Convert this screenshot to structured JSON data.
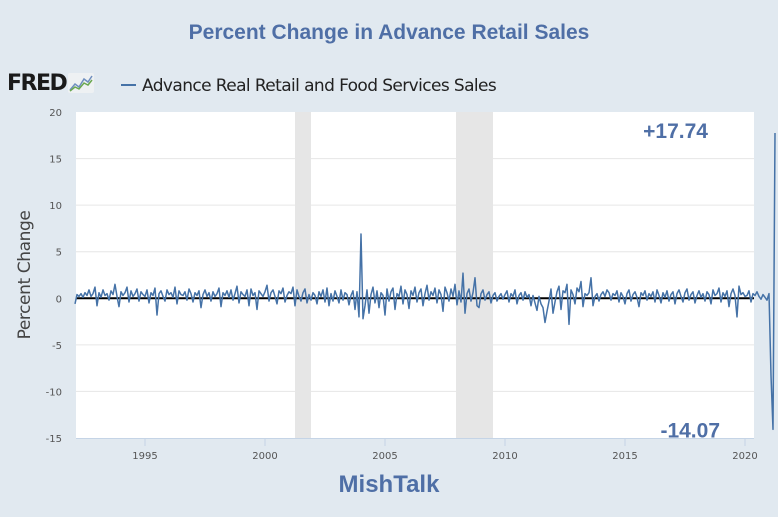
{
  "chart_data": {
    "type": "line",
    "title": "Percent Change in Advance Retail Sales",
    "source_logo": "FRED",
    "footer": "MishTalk",
    "ylabel": "Percent Change",
    "xlabel": "",
    "ylim": [
      -15,
      20
    ],
    "xlim": [
      1992.125,
      2020.375
    ],
    "yticks": [
      20,
      15,
      10,
      5,
      0,
      -5,
      -10,
      -15
    ],
    "xticks": [
      1995,
      2000,
      2005,
      2010,
      2015,
      2020
    ],
    "grid": true,
    "legend": "top-left",
    "series": [
      {
        "name": "Advance Real Retail and Food Services Sales",
        "color": "#4572a7",
        "start": "1992-02",
        "frequency": "monthly",
        "values": [
          -0.6,
          0.4,
          0.2,
          0.5,
          0.1,
          0.6,
          0.3,
          0.9,
          0.2,
          0.5,
          1.2,
          -0.8,
          0.6,
          0.1,
          0.9,
          0.3,
          0.5,
          -0.2,
          0.8,
          0.4,
          1.5,
          0.2,
          -0.9,
          0.7,
          0.3,
          0.6,
          1.2,
          -0.4,
          0.8,
          0.2,
          0.5,
          1.0,
          -0.3,
          0.7,
          0.4,
          0.2,
          0.9,
          -0.5,
          0.6,
          0.3,
          1.1,
          -1.8,
          0.5,
          0.8,
          0.2,
          -0.3,
          0.9,
          0.4,
          0.6,
          0.1,
          1.2,
          -0.6,
          0.8,
          0.4,
          0.3,
          0.7,
          -0.2,
          1.0,
          0.5,
          -0.4,
          0.6,
          0.3,
          0.8,
          -1.0,
          0.4,
          0.9,
          0.2,
          0.6,
          -0.3,
          0.7,
          0.2,
          0.5,
          1.1,
          -0.9,
          0.6,
          0.3,
          0.8,
          0.1,
          0.9,
          -0.2,
          0.5,
          1.3,
          -0.5,
          0.7,
          0.4,
          0.2,
          0.9,
          -0.8,
          1.0,
          0.3,
          0.6,
          -1.2,
          0.8,
          0.5,
          0.2,
          0.7,
          1.4,
          -0.3,
          0.6,
          0.9,
          0.2,
          -0.6,
          0.8,
          0.5,
          1.1,
          -0.4,
          0.3,
          0.7,
          0.5,
          1.2,
          -0.8,
          0.9,
          0.2,
          -0.3,
          0.6,
          1.0,
          -0.5,
          0.4,
          -0.2,
          0.6,
          0.3,
          -0.6,
          0.7,
          0.2,
          0.9,
          -0.4,
          1.1,
          -0.8,
          0.5,
          -0.3,
          0.8,
          0.2,
          -0.5,
          0.9,
          -0.2,
          0.6,
          0.4,
          -0.7,
          0.3,
          0.8,
          -1.2,
          0.7,
          -2.0,
          6.9,
          -2.2,
          -0.8,
          0.9,
          -1.6,
          0.4,
          1.2,
          -0.5,
          0.8,
          -1.0,
          0.6,
          0.3,
          -1.8,
          1.0,
          -0.3,
          0.7,
          1.1,
          -1.2,
          0.5,
          0.2,
          1.3,
          -0.6,
          0.9,
          0.4,
          -1.1,
          0.8,
          0.3,
          1.2,
          -0.4,
          0.6,
          1.0,
          -0.8,
          0.5,
          1.4,
          -0.2,
          0.7,
          0.3,
          1.1,
          -0.5,
          0.9,
          0.4,
          -1.4,
          1.2,
          0.6,
          -0.3,
          1.0,
          0.2,
          1.5,
          -0.7,
          0.8,
          -0.4,
          2.7,
          -1.6,
          0.5,
          1.0,
          -0.3,
          0.6,
          2.2,
          -0.8,
          -1.0,
          0.5,
          0.9,
          -0.2,
          0.4,
          0.7,
          -0.5,
          0.3,
          0.6,
          -0.3,
          0.2,
          0.5,
          -0.1,
          0.4,
          0.8,
          -0.4,
          0.5,
          0.2,
          0.9,
          -0.6,
          0.3,
          0.6,
          -0.2,
          0.7,
          0.1,
          0.4,
          -0.8,
          0.3,
          -0.5,
          -1.3,
          0.2,
          -0.6,
          -1.0,
          -2.6,
          -1.4,
          -0.3,
          1.0,
          -1.6,
          -0.4,
          0.7,
          1.3,
          -1.2,
          0.8,
          0.6,
          1.5,
          -2.8,
          0.9,
          0.4,
          -0.6,
          1.1,
          0.7,
          1.8,
          -0.9,
          0.5,
          0.3,
          0.6,
          2.2,
          -0.8,
          0.2,
          0.5,
          -0.3,
          0.4,
          0.7,
          0.2,
          0.9,
          0.6,
          -0.2,
          0.5,
          0.3,
          0.8,
          -0.4,
          0.6,
          0.2,
          -0.6,
          0.5,
          0.9,
          -0.3,
          0.4,
          0.7,
          0.1,
          -0.9,
          0.6,
          0.3,
          0.8,
          -0.2,
          0.5,
          0.2,
          0.7,
          -0.4,
          0.9,
          0.3,
          -0.5,
          0.6,
          0.1,
          0.8,
          -0.3,
          0.4,
          0.7,
          -0.6,
          0.5,
          0.9,
          0.2,
          -0.4,
          0.6,
          1.0,
          -0.2,
          0.4,
          0.7,
          -0.5,
          0.3,
          0.8,
          0.1,
          0.5,
          -0.3,
          0.7,
          0.4,
          -0.6,
          0.9,
          0.3,
          0.5,
          1.1,
          -0.4,
          0.6,
          0.2,
          0.8,
          -0.9,
          0.5,
          1.0,
          0.3,
          -2.0,
          1.3,
          0.4,
          0.6,
          0.2,
          0.3,
          0.8,
          -0.4,
          0.5,
          0.3,
          0.7,
          0.2,
          -0.1,
          0.4,
          0.1,
          -0.2,
          0.5,
          -8.3,
          -14.07,
          17.74
        ]
      }
    ],
    "recessions": [
      [
        2001.25,
        2001.917
      ],
      [
        2007.958,
        2009.5
      ]
    ],
    "zero_line": true,
    "annotations": [
      {
        "text": "+17.74",
        "value": 17.74
      },
      {
        "text": "-14.07",
        "value": -14.07
      }
    ]
  }
}
